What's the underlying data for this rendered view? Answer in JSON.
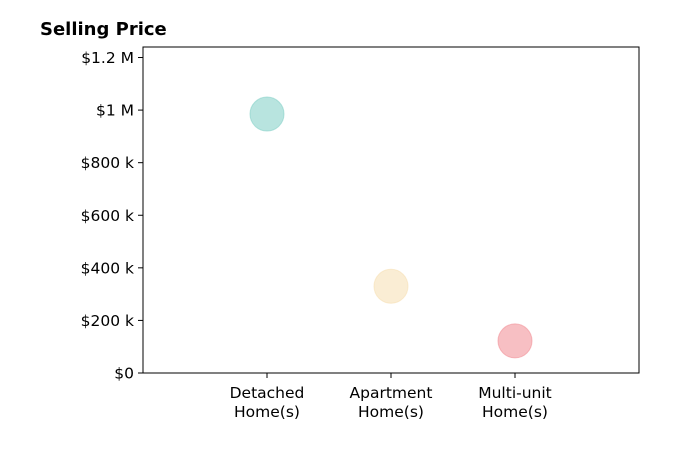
{
  "chart_data": {
    "type": "scatter",
    "title": "Selling Price",
    "xlabel": "",
    "ylabel": "",
    "categories": [
      [
        "Detached",
        "Home(s)"
      ],
      [
        "Apartment",
        "Home(s)"
      ],
      [
        "Multi-unit",
        "Home(s)"
      ]
    ],
    "values": [
      985000,
      330000,
      122000
    ],
    "colors": [
      "#7ecdc4",
      "#f5deb0",
      "#f08b92"
    ],
    "point_opacity": 0.55,
    "ylim": [
      0,
      1240000
    ],
    "yticks": [
      0,
      200000,
      400000,
      600000,
      800000,
      1000000,
      1200000
    ],
    "ytick_labels": [
      "$0",
      "$200 k",
      "$400 k",
      "$600 k",
      "$800 k",
      "$1 M",
      "$1.2 M"
    ],
    "grid": false,
    "legend": "none"
  }
}
